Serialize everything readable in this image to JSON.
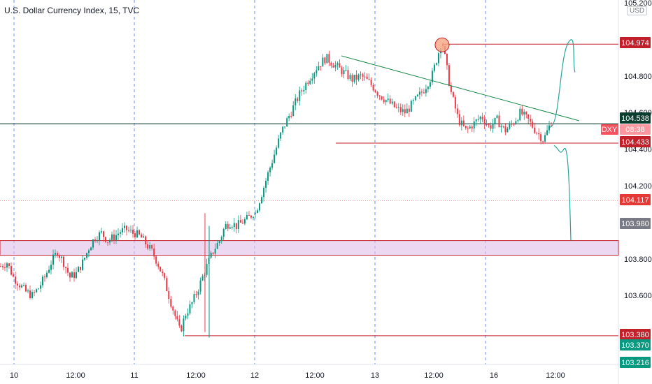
{
  "chart_data": {
    "type": "candlestick",
    "title": "U.S. Dollar Currency Index, 15, TVC",
    "currency_badge": "USD",
    "ylim": [
      103.2,
      105.2
    ],
    "y_ticks": [
      "105.200",
      "104.800",
      "104.600",
      "104.400",
      "104.200",
      "103.800",
      "103.600"
    ],
    "x_ticks": [
      "10",
      "12:00",
      "11",
      "12:00",
      "12",
      "12:00",
      "13",
      "12:00",
      "16",
      "12:00"
    ],
    "grid": "session separators (dashed, vertical)",
    "price_labels": [
      {
        "value": "104.974",
        "color": "#c2202a"
      },
      {
        "value": "104.538",
        "color": "#0b3d2e"
      },
      {
        "value": "104.433",
        "color": "#c2202a"
      },
      {
        "value": "104.117",
        "color": "#e53935"
      },
      {
        "value": "103.980",
        "color": "#787b86"
      },
      {
        "value": "103.380",
        "color": "#c2202a"
      },
      {
        "value": "103.370",
        "color": "#089981"
      },
      {
        "value": "103.216",
        "color": "#089981"
      }
    ],
    "symbol_badge": {
      "symbol": "DXY",
      "countdown": "08:38"
    },
    "horizontal_levels": [
      104.974,
      104.538,
      104.433,
      103.38
    ],
    "zone": [
      103.82,
      103.9
    ],
    "trendline": [
      [
        104.9,
        "12 09:00"
      ],
      [
        104.56,
        "16 14:30"
      ]
    ],
    "projection": "up to ~104.97 then down to ~103.90",
    "price_path": [
      [
        103.76,
        103.78,
        103.7,
        103.66,
        103.62,
        103.6,
        103.64,
        103.7,
        103.78,
        103.84,
        103.78,
        103.7,
        103.72,
        103.78,
        103.86,
        103.92,
        103.94,
        103.9,
        103.92,
        103.95,
        103.96,
        103.94
      ],
      [
        103.94,
        103.92,
        103.88,
        103.84,
        103.78,
        103.7,
        103.6,
        103.5,
        103.4,
        103.5,
        103.55,
        103.62,
        103.7,
        103.78,
        103.85,
        103.9,
        103.98,
        104.0,
        103.98,
        104.0,
        104.02,
        104.05
      ],
      [
        104.05,
        104.2,
        104.35,
        104.5,
        104.6,
        104.7,
        104.78,
        104.85,
        104.9,
        104.86,
        104.82,
        104.78,
        104.8,
        104.76,
        104.7,
        104.66,
        104.62,
        104.6,
        104.66,
        104.72,
        104.8,
        104.97
      ],
      [
        104.97,
        104.72,
        104.56,
        104.5,
        104.54,
        104.58,
        104.52,
        104.56,
        104.5,
        104.54,
        104.6,
        104.56,
        104.5,
        104.45,
        104.55
      ]
    ]
  }
}
